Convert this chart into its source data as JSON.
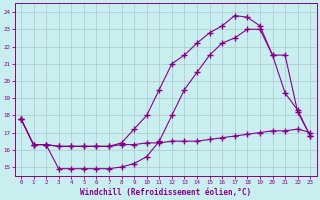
{
  "bg_color": "#c8eef0",
  "grid_color": "#aac8cc",
  "line_color": "#880088",
  "marker": "+",
  "marker_size": 4,
  "marker_lw": 1.0,
  "xlim": [
    -0.5,
    23.5
  ],
  "ylim": [
    14.5,
    24.5
  ],
  "yticks": [
    15,
    16,
    17,
    18,
    19,
    20,
    21,
    22,
    23,
    24
  ],
  "xticks": [
    0,
    1,
    2,
    3,
    4,
    5,
    6,
    7,
    8,
    9,
    10,
    11,
    12,
    13,
    14,
    15,
    16,
    17,
    18,
    19,
    20,
    21,
    22,
    23
  ],
  "xlabel": "Windchill (Refroidissement éolien,°C)",
  "line1_x": [
    0,
    1,
    2,
    3,
    4,
    5,
    6,
    7,
    8,
    9,
    10,
    11,
    12,
    13,
    14,
    15,
    16,
    17,
    18,
    19,
    20,
    21,
    22,
    23
  ],
  "line1_y": [
    17.8,
    16.3,
    16.3,
    16.2,
    16.2,
    16.2,
    16.2,
    16.2,
    16.3,
    16.3,
    16.4,
    16.4,
    16.5,
    16.5,
    16.5,
    16.6,
    16.7,
    16.8,
    16.9,
    17.0,
    17.1,
    17.1,
    17.2,
    17.0
  ],
  "line2_x": [
    0,
    1,
    2,
    3,
    4,
    5,
    6,
    7,
    8,
    9,
    10,
    11,
    12,
    13,
    14,
    15,
    16,
    17,
    18,
    19,
    20,
    21,
    22,
    23
  ],
  "line2_y": [
    17.8,
    16.3,
    16.3,
    16.2,
    16.2,
    16.2,
    16.2,
    16.2,
    16.4,
    17.2,
    18.0,
    19.5,
    21.0,
    21.5,
    22.2,
    22.8,
    23.2,
    23.8,
    23.7,
    23.2,
    21.5,
    21.5,
    18.2,
    16.8
  ],
  "line3_x": [
    0,
    1,
    2,
    3,
    4,
    5,
    6,
    7,
    8,
    9,
    10,
    11,
    12,
    13,
    14,
    15,
    16,
    17,
    18,
    19,
    20,
    21,
    22,
    23
  ],
  "line3_y": [
    17.8,
    16.3,
    16.3,
    14.9,
    14.9,
    14.9,
    14.9,
    14.9,
    15.0,
    15.2,
    15.6,
    16.5,
    18.0,
    19.5,
    20.5,
    21.5,
    22.2,
    22.5,
    23.0,
    23.0,
    21.5,
    19.3,
    18.3,
    16.8
  ]
}
